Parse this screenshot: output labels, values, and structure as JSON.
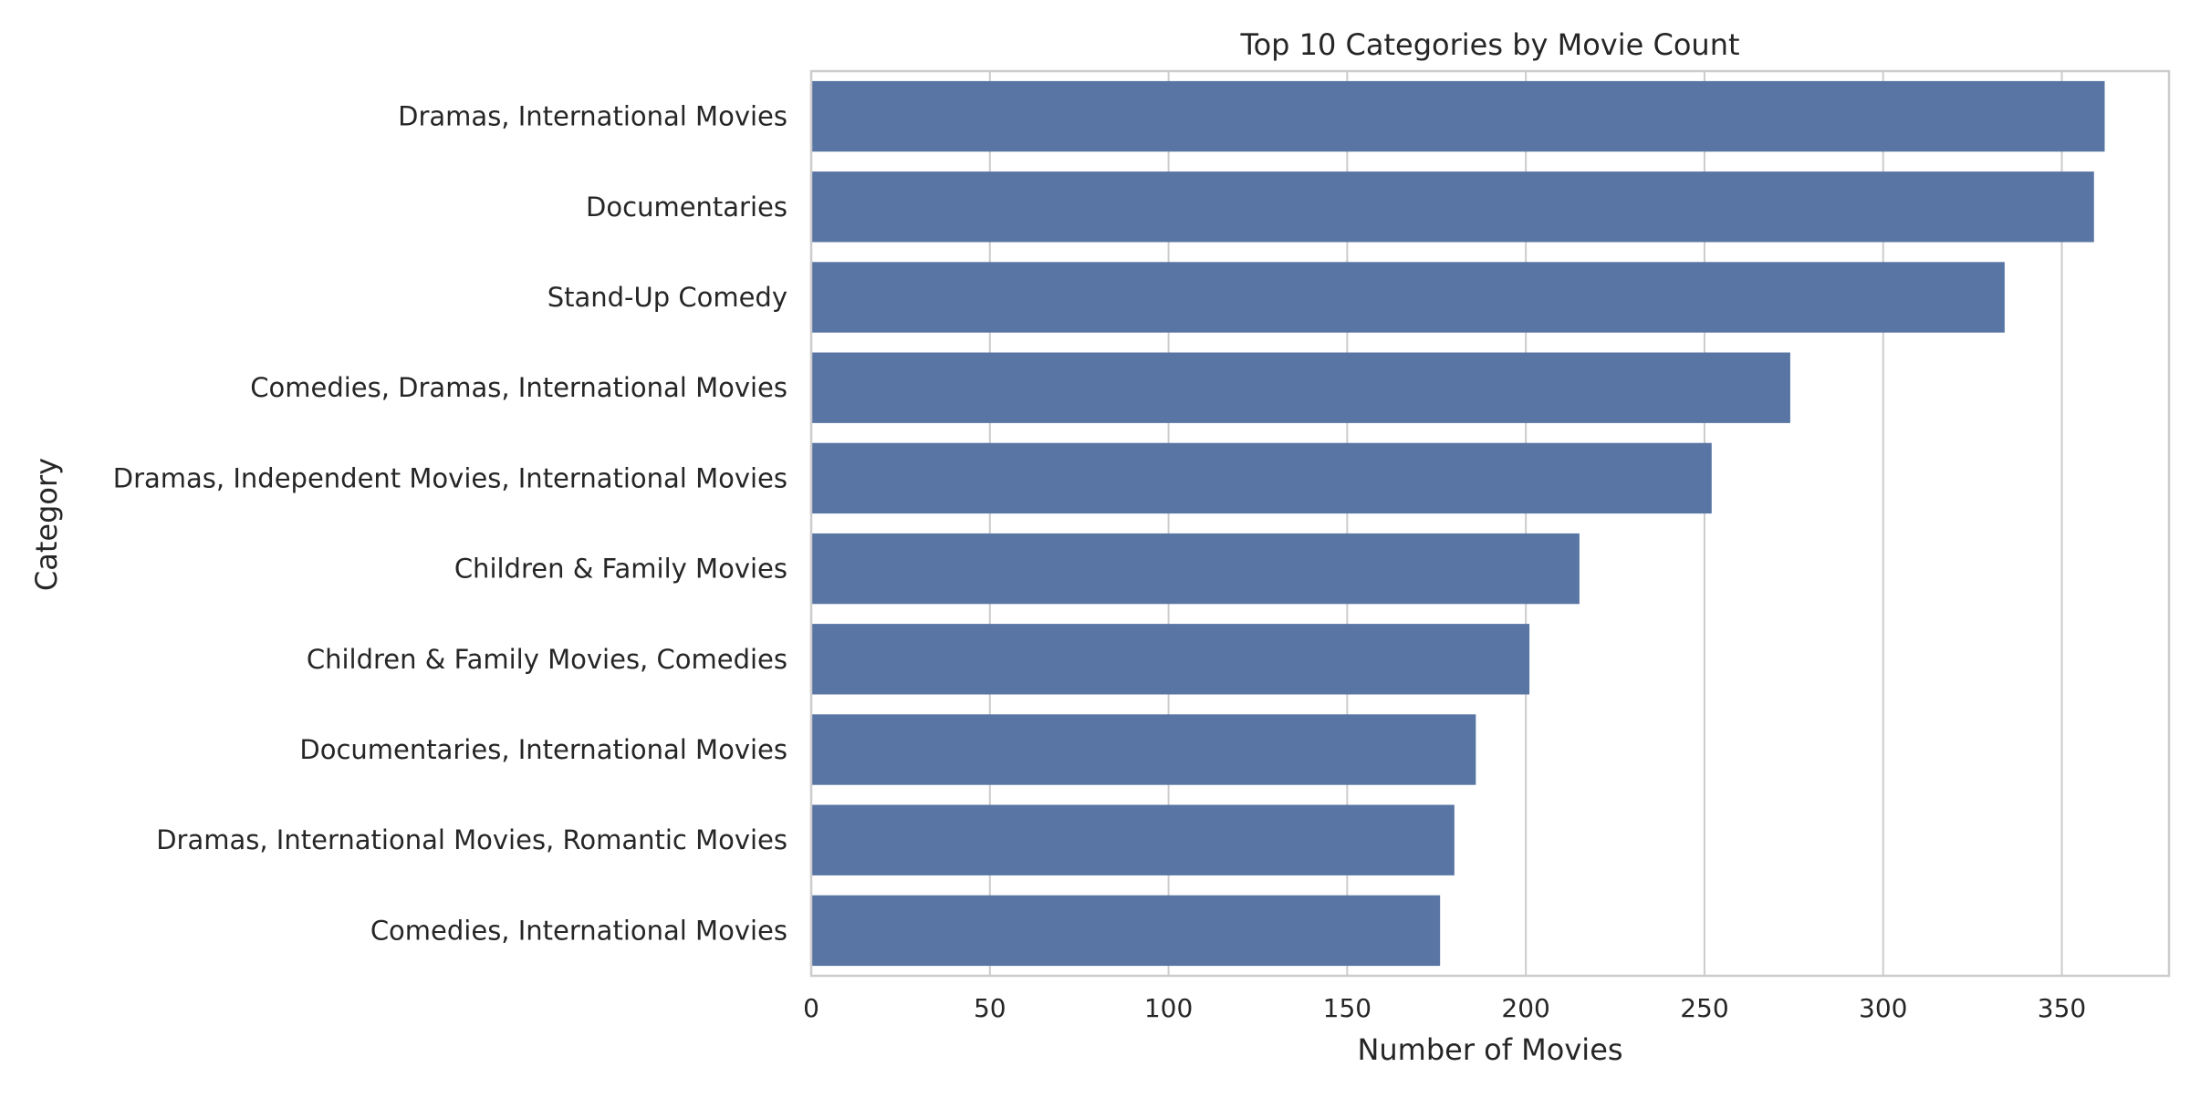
{
  "chart_data": {
    "type": "bar",
    "orientation": "horizontal",
    "title": "Top 10 Categories by Movie Count",
    "xlabel": "Number of Movies",
    "ylabel": "Category",
    "categories": [
      "Dramas, International Movies",
      "Documentaries",
      "Stand-Up Comedy",
      "Comedies, Dramas, International Movies",
      "Dramas, Independent Movies, International Movies",
      "Children & Family Movies",
      "Children & Family Movies, Comedies",
      "Documentaries, International Movies",
      "Dramas, International Movies, Romantic Movies",
      "Comedies, International Movies"
    ],
    "values": [
      362,
      359,
      334,
      274,
      252,
      215,
      201,
      186,
      180,
      176
    ],
    "xlim": [
      0,
      380
    ],
    "xticks": [
      0,
      50,
      100,
      150,
      200,
      250,
      300,
      350
    ],
    "grid": true,
    "legend": "none",
    "colors": {
      "bar": "#5975a4",
      "grid": "#cccccc",
      "spine": "#cccccc",
      "text": "#262626"
    }
  }
}
